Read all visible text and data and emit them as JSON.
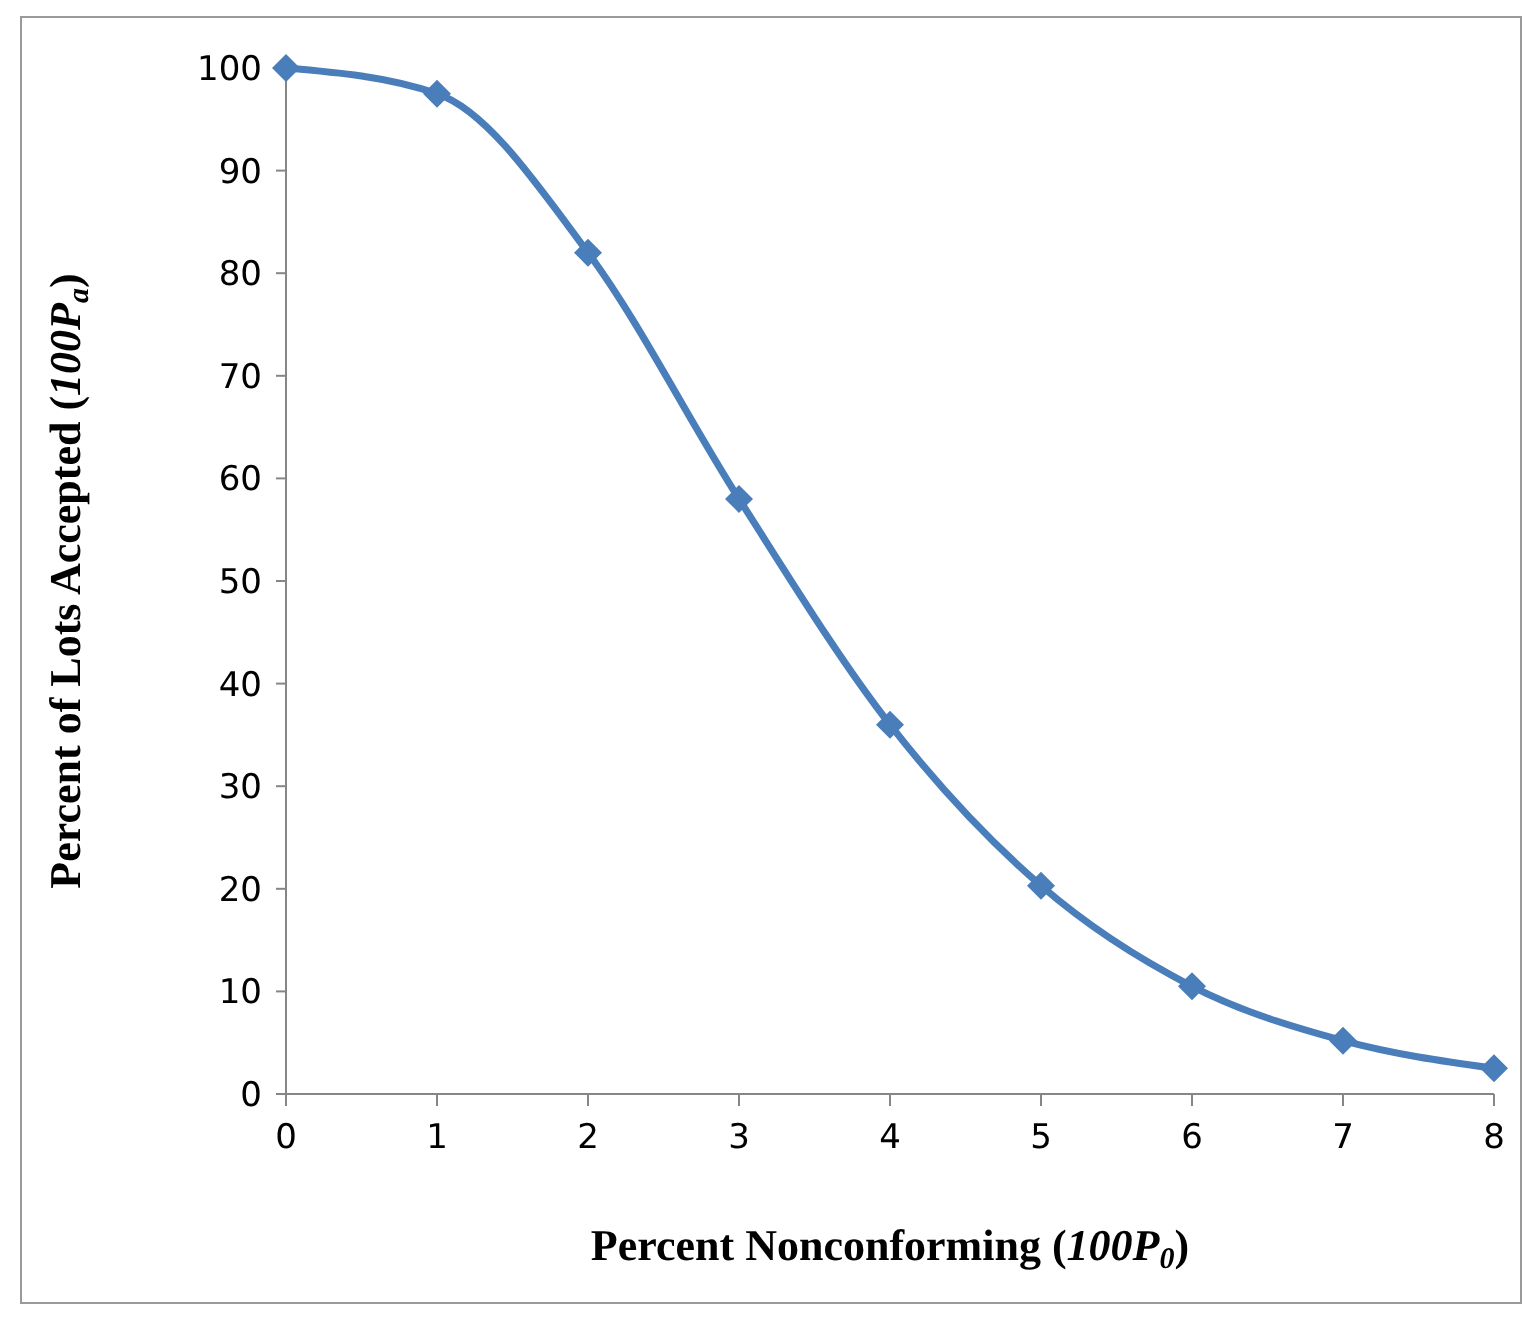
{
  "chart_data": {
    "type": "line",
    "xlabel": "Percent Nonconforming (100P$_{0}$)",
    "ylabel": "Percent of Lots Accepted (100P$_{a}$)",
    "x": [
      0,
      1,
      2,
      3,
      4,
      5,
      6,
      7,
      8
    ],
    "series": [
      {
        "color": "#4a7ebb",
        "values": [
          100,
          97.5,
          82,
          58,
          36,
          20.3,
          10.5,
          5.2,
          2.5
        ]
      }
    ],
    "xlim": [
      0,
      8
    ],
    "xticks": [
      0,
      1,
      2,
      3,
      4,
      5,
      6,
      7,
      8
    ],
    "ylim": [
      0,
      100
    ],
    "yticks": [
      0,
      10,
      20,
      30,
      40,
      50,
      60,
      70,
      80,
      90,
      100
    ],
    "grid": false,
    "marker": "diamond",
    "line_style": "solid"
  }
}
